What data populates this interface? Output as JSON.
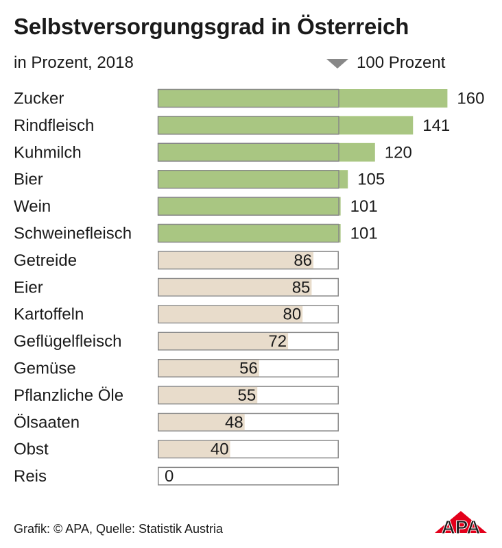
{
  "header": {
    "title": "Selbstversorgungsgrad in Österreich",
    "subtitle": "in Prozent, 2018",
    "legend_label": "100 Prozent"
  },
  "footer": {
    "source": "Grafik: © APA, Quelle: Statistik Austria",
    "logo_text": "APA"
  },
  "colors": {
    "above": "#a9c682",
    "below": "#e8dccb",
    "border": "#888888",
    "logo": "#e3001b"
  },
  "chart_data": {
    "type": "bar",
    "orientation": "horizontal",
    "title": "Selbstversorgungsgrad in Österreich",
    "subtitle": "in Prozent, 2018",
    "reference_line": 100,
    "reference_label": "100 Prozent",
    "categories": [
      "Zucker",
      "Rindfleisch",
      "Kuhmilch",
      "Bier",
      "Wein",
      "Schweinefleisch",
      "Getreide",
      "Eier",
      "Kartoffeln",
      "Geflügelfleisch",
      "Gemüse",
      "Pflanzliche Öle",
      "Ölsaaten",
      "Obst",
      "Reis"
    ],
    "values": [
      160,
      141,
      120,
      105,
      101,
      101,
      86,
      85,
      80,
      72,
      56,
      55,
      48,
      40,
      0
    ]
  }
}
